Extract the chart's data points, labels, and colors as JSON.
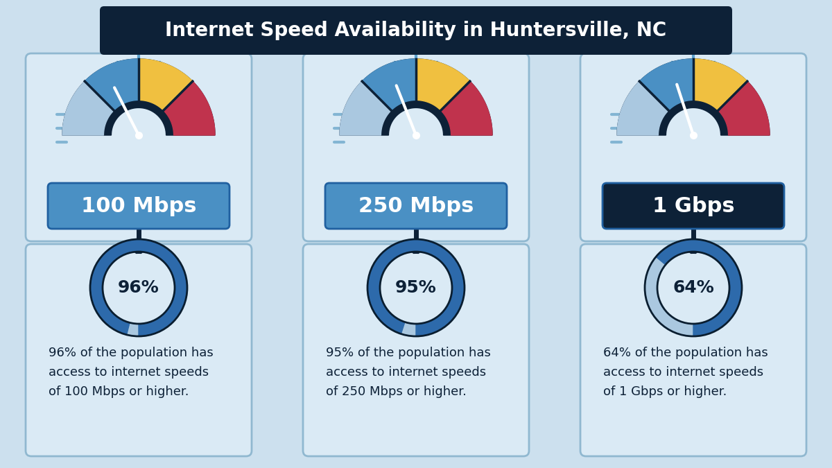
{
  "title": "Internet Speed Availability in Huntersville, NC",
  "title_bg": "#0d2137",
  "title_color": "#ffffff",
  "bg_color": "#cce0ee",
  "card_bg": "#daeaf5",
  "card_border": "#90b8d0",
  "top_panel_bg": "#daeaf5",
  "top_panel_border": "#90b8d0",
  "speeds": [
    "100 Mbps",
    "250 Mbps",
    "1 Gbps"
  ],
  "percentages": [
    96,
    95,
    64
  ],
  "descriptions": [
    "96% of the population has\naccess to internet speeds\nof 100 Mbps or higher.",
    "95% of the population has\naccess to internet speeds\nof 250 Mbps or higher.",
    "64% of the population has\naccess to internet speeds\nof 1 Gbps or higher."
  ],
  "speed_label_bg": [
    "#4a90c4",
    "#4a90c4",
    "#0d2137"
  ],
  "speed_label_color": "#ffffff",
  "gauge_dark": "#0d2137",
  "gauge_segments": [
    "#aac8e0",
    "#4a90c4",
    "#f0c040",
    "#c0334d"
  ],
  "donut_main": [
    "#2d6aab",
    "#2d6aab",
    "#2d6aab"
  ],
  "donut_remain": [
    "#aac8e0",
    "#aac8e0",
    "#aac8e0"
  ],
  "donut_center_bg": "#daeaf5",
  "donut_text_color": "#0d2137",
  "connector_color": "#5ba0cc",
  "connector_dark": "#0d2137",
  "desc_text_color": "#0d2137",
  "speed_label_border": "#2060a0",
  "cols": [
    2.0,
    6.0,
    10.0
  ],
  "needle_angles": [
    0.65,
    0.62,
    0.6
  ]
}
